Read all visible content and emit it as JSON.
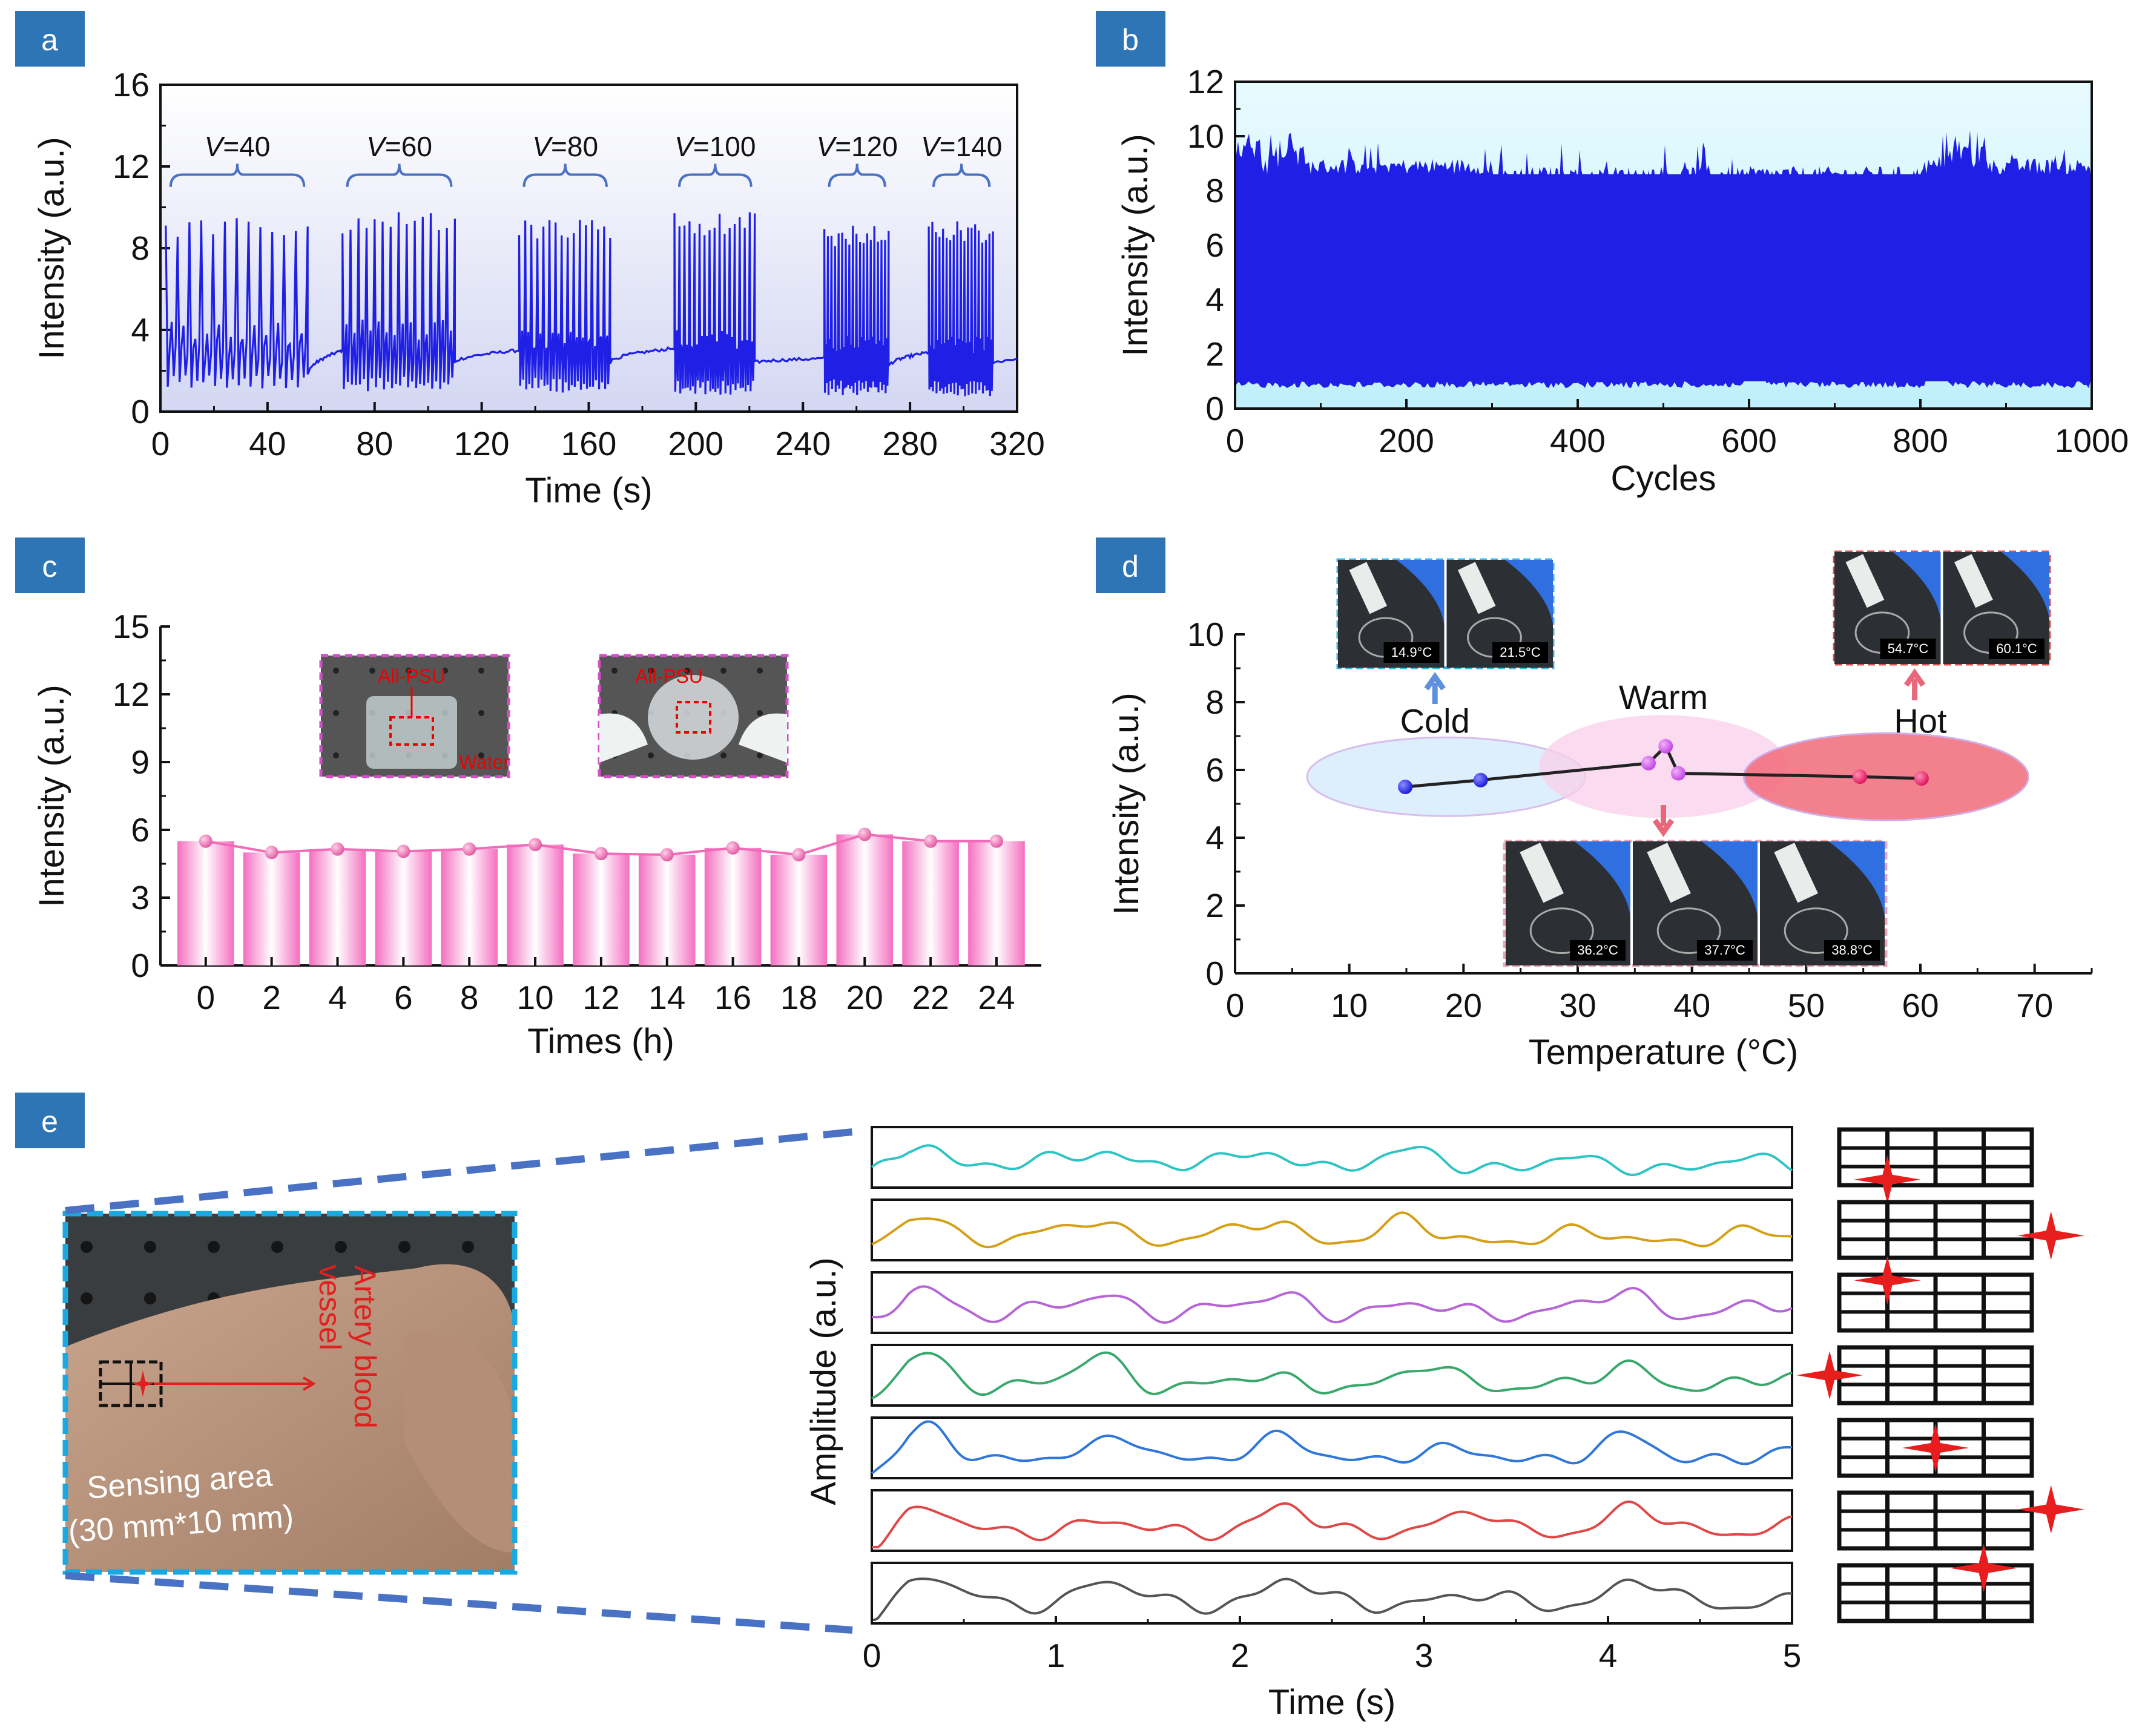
{
  "colors": {
    "panel_label_bg": "#2e75b6",
    "trace_blue": "#1f1fe6",
    "pink": "#f06bb8",
    "bracket": "#4a72c4",
    "inset_cold": "#39b6e6",
    "inset_hot": "#d9534f",
    "inset_warm": "#e8a6b6",
    "inset_pink": "#d24fc7",
    "wave_colors": [
      "#2fc4c4",
      "#d4a017",
      "#b565d6",
      "#3aa86b",
      "#2f77d8",
      "#e04848",
      "#555555"
    ],
    "dashed_blue": "#4a72c4"
  },
  "chart_data": [
    {
      "panel": "a",
      "type": "line",
      "xlabel": "Time (s)",
      "ylabel": "Intensity (a.u.)",
      "xlim": [
        0,
        320
      ],
      "ylim": [
        0,
        16
      ],
      "xticks": [
        0,
        40,
        80,
        120,
        160,
        200,
        240,
        280,
        320
      ],
      "yticks": [
        0,
        4,
        8,
        12,
        16
      ],
      "annotations": [
        {
          "var": "V",
          "text": "=40",
          "x_range": [
            2,
            55
          ]
        },
        {
          "var": "V",
          "text": "=60",
          "x_range": [
            68,
            110
          ]
        },
        {
          "var": "V",
          "text": "=80",
          "x_range": [
            134,
            168
          ]
        },
        {
          "var": "V",
          "text": "=100",
          "x_range": [
            192,
            222
          ]
        },
        {
          "var": "V",
          "text": "=120",
          "x_range": [
            248,
            272
          ]
        },
        {
          "var": "V",
          "text": "=140",
          "x_range": [
            287,
            311
          ]
        }
      ],
      "bursts": [
        {
          "x_start": 2,
          "x_end": 55,
          "peaks": 12,
          "peak_max": 9.5,
          "base_max": 4.4,
          "base_min": 1.1
        },
        {
          "x_start": 68,
          "x_end": 110,
          "peaks": 14,
          "peak_max": 9.8,
          "base_max": 4.5,
          "base_min": 1.0
        },
        {
          "x_start": 134,
          "x_end": 168,
          "peaks": 15,
          "peak_max": 9.6,
          "base_max": 4.0,
          "base_min": 0.9
        },
        {
          "x_start": 192,
          "x_end": 222,
          "peaks": 16,
          "peak_max": 9.8,
          "base_max": 4.0,
          "base_min": 0.8
        },
        {
          "x_start": 248,
          "x_end": 272,
          "peaks": 18,
          "peak_max": 9.2,
          "base_max": 3.8,
          "base_min": 0.8
        },
        {
          "x_start": 287,
          "x_end": 311,
          "peaks": 18,
          "peak_max": 9.4,
          "base_max": 3.8,
          "base_min": 0.7
        }
      ],
      "recovery": [
        {
          "x": [
            55,
            68
          ],
          "y": [
            1.8,
            3.0
          ]
        },
        {
          "x": [
            110,
            134
          ],
          "y": [
            2.4,
            3.0
          ]
        },
        {
          "x": [
            168,
            192
          ],
          "y": [
            2.4,
            3.1
          ]
        },
        {
          "x": [
            222,
            248
          ],
          "y": [
            2.4,
            2.6
          ]
        },
        {
          "x": [
            272,
            287
          ],
          "y": [
            2.2,
            2.9
          ]
        },
        {
          "x": [
            311,
            320
          ],
          "y": [
            2.4,
            2.6
          ]
        }
      ]
    },
    {
      "panel": "b",
      "type": "line",
      "xlabel": "Cycles",
      "ylabel": "Intensity (a.u.)",
      "xlim": [
        0,
        1000
      ],
      "ylim": [
        0,
        12
      ],
      "xticks": [
        0,
        200,
        400,
        600,
        800,
        1000
      ],
      "yticks": [
        0,
        2,
        4,
        6,
        8,
        10,
        12
      ],
      "band_lower": 1.0,
      "band_upper": 8.6,
      "spike_max": 9.8
    },
    {
      "panel": "c",
      "type": "bar",
      "xlabel": "Times (h)",
      "ylabel": "Intensity (a.u.)",
      "ylim": [
        0,
        15
      ],
      "yticks": [
        0,
        3,
        6,
        9,
        12,
        15
      ],
      "categories": [
        "0",
        "2",
        "4",
        "6",
        "8",
        "10",
        "12",
        "14",
        "16",
        "18",
        "20",
        "22",
        "24"
      ],
      "values": [
        5.5,
        5.0,
        5.15,
        5.05,
        5.15,
        5.35,
        4.95,
        4.9,
        5.2,
        4.9,
        5.8,
        5.5,
        5.5
      ],
      "inset_labels": [
        "All-PSU",
        "Water",
        "All-PSU"
      ]
    },
    {
      "panel": "d",
      "type": "line",
      "xlabel": "Temperature (°C)",
      "ylabel": "Intensity (a.u.)",
      "xlim": [
        0,
        75
      ],
      "ylim": [
        0,
        10
      ],
      "xticks": [
        0,
        10,
        20,
        30,
        40,
        50,
        60,
        70
      ],
      "yticks": [
        0,
        2,
        4,
        6,
        8,
        10
      ],
      "x": [
        14.9,
        21.5,
        36.2,
        37.7,
        38.8,
        54.7,
        60.1
      ],
      "values": [
        5.5,
        5.7,
        6.2,
        6.7,
        5.9,
        5.8,
        5.75
      ],
      "groups": [
        {
          "label": "Cold",
          "readings": [
            "14.9°C",
            "21.5°C"
          ]
        },
        {
          "label": "Warm",
          "readings": [
            "36.2°C",
            "37.7°C",
            "38.8°C"
          ]
        },
        {
          "label": "Hot",
          "readings": [
            "54.7°C",
            "60.1°C"
          ]
        }
      ]
    },
    {
      "panel": "e",
      "type": "line",
      "xlabel": "Time (s)",
      "ylabel": "Amplitude (a.u.)",
      "xlim": [
        0,
        5
      ],
      "xticks": [
        0,
        1,
        2,
        3,
        4,
        5
      ],
      "photo_labels": {
        "artery_line1": "Artery blood",
        "artery_line2": "vessel",
        "sensing_line1": "Sensing area",
        "sensing_line2": "(30 mm*10 mm)"
      },
      "traces": 7
    }
  ],
  "panel_labels": [
    "a",
    "b",
    "c",
    "d",
    "e"
  ]
}
